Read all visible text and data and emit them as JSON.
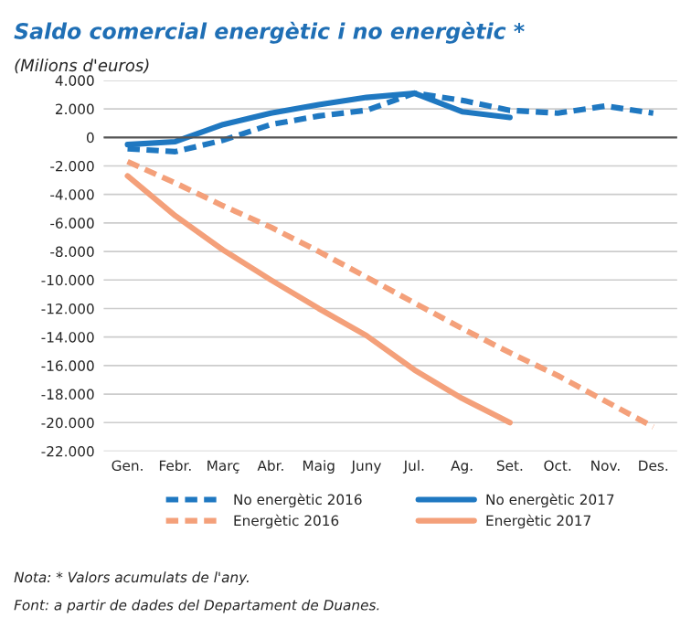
{
  "chart_data": {
    "type": "line",
    "title": "Saldo comercial energètic i no energètic *",
    "subtitle": "(Milions d'euros)",
    "categories": [
      "Gen.",
      "Febr.",
      "Març",
      "Abr.",
      "Maig",
      "Juny",
      "Jul.",
      "Ag.",
      "Set.",
      "Oct.",
      "Nov.",
      "Des."
    ],
    "series": [
      {
        "name": "No energètic 2016",
        "color": "#1f78c1",
        "line_style": "dashed",
        "values": [
          -800,
          -1000,
          -200,
          900,
          1500,
          1900,
          3100,
          2600,
          1900,
          1700,
          2200,
          1700
        ]
      },
      {
        "name": "Energètic 2016",
        "color": "#f4a07a",
        "line_style": "dashed",
        "values": [
          -1700,
          -3200,
          -4800,
          -6300,
          -8000,
          -9800,
          -11600,
          -13400,
          -15100,
          -16700,
          -18500,
          -20300
        ]
      },
      {
        "name": "No energètic 2017",
        "color": "#1f78c1",
        "line_style": "solid",
        "values": [
          -500,
          -300,
          900,
          1700,
          2300,
          2800,
          3100,
          1800,
          1400,
          null,
          null,
          null
        ]
      },
      {
        "name": "Energètic 2017",
        "color": "#f4a07a",
        "line_style": "solid",
        "values": [
          -2700,
          -5500,
          -7900,
          -10000,
          -12000,
          -13900,
          -16300,
          -18300,
          -20000,
          null,
          null,
          null
        ]
      }
    ],
    "ylim": [
      -22000,
      4000
    ],
    "yticks": [
      {
        "value": -22000,
        "label": "-22.000"
      },
      {
        "value": -20000,
        "label": "-20.000"
      },
      {
        "value": -18000,
        "label": "-18.000"
      },
      {
        "value": -16000,
        "label": "-16.000"
      },
      {
        "value": -14000,
        "label": "-14.000"
      },
      {
        "value": -12000,
        "label": "-12.000"
      },
      {
        "value": -10000,
        "label": "-10.000"
      },
      {
        "value": -8000,
        "label": "-8.000"
      },
      {
        "value": -6000,
        "label": "-6.000"
      },
      {
        "value": -4000,
        "label": "-4.000"
      },
      {
        "value": -2000,
        "label": "-2.000"
      },
      {
        "value": 0,
        "label": "0"
      },
      {
        "value": 2000,
        "label": "2.000"
      },
      {
        "value": 4000,
        "label": "4.000"
      }
    ],
    "grid": "y",
    "legend": "bottom",
    "ref_lines": [
      {
        "axis": "y",
        "value": 0,
        "color": "#555555"
      }
    ],
    "annotations": [
      "Nota: * Valors acumulats de l'any.",
      "Font: a partir de dades del Departament de Duanes."
    ]
  }
}
